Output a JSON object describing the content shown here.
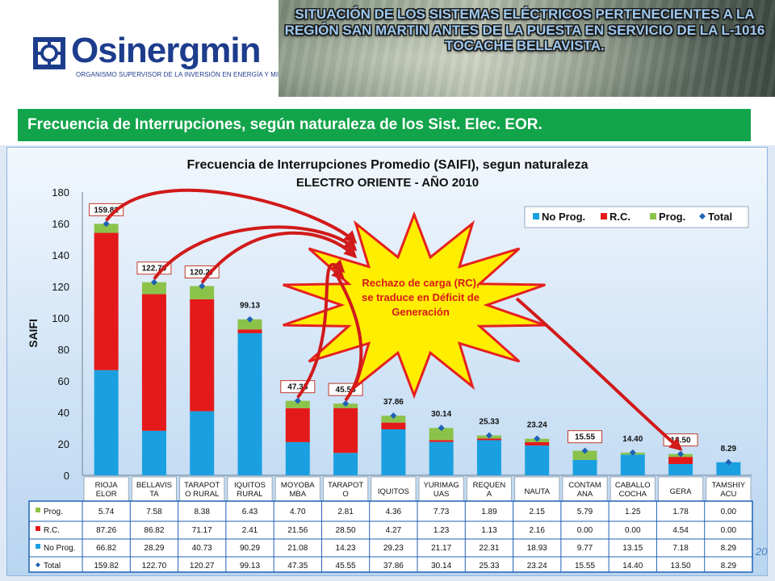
{
  "header": {
    "logo_name": "Osinergmin",
    "logo_subtitle": "ORGANISMO SUPERVISOR DE LA INVERSIÓN EN ENERGÍA Y MINERÍA",
    "title": "SITUACIÓN DE LOS SISTEMAS ELÉCTRICOS PERTENECIENTES A LA REGIÓN SAN MARTIN ANTES DE LA PUESTA EN SERVICIO DE LA L-1016 TOCACHE BELLAVISTA."
  },
  "section_title": "Frecuencia de Interrupciones, según naturaleza de los Sist. Elec. EOR.",
  "page_number": "20",
  "colors": {
    "no_prog": "#1aa0e0",
    "rc": "#e41a1a",
    "prog": "#8bc34a",
    "total": "#1f62b5",
    "green_bar": "#12a44a",
    "starburst": "#ffee00"
  },
  "callout": {
    "text_lines": [
      "Rechazo de carga (RC),",
      "se traduce en Déficit de",
      "Generación"
    ]
  },
  "chart_data": {
    "type": "bar",
    "stacked": true,
    "title": "Frecuencia de Interrupciones Promedio (SAIFI), segun naturaleza",
    "subtitle": "ELECTRO ORIENTE - AÑO 2010",
    "ylabel": "SAIFI",
    "xlabel": "",
    "ylim": [
      0,
      180
    ],
    "yticks": [
      "0",
      "20",
      "40",
      "60",
      "80",
      "100",
      "120",
      "140",
      "160",
      "180"
    ],
    "grid": false,
    "legend_position": "top-right",
    "categories": [
      [
        "RIOJA",
        "ELOR"
      ],
      [
        "BELLAVIS",
        "TA"
      ],
      [
        "TARAPOT",
        "O RURAL"
      ],
      [
        "IQUITOS",
        "RURAL"
      ],
      [
        "MOYOBA",
        "MBA"
      ],
      [
        "TARAPOT",
        "O"
      ],
      [
        "IQUITOS"
      ],
      [
        "YURIMAG",
        "UAS"
      ],
      [
        "REQUEN",
        "A"
      ],
      [
        "NAUTA"
      ],
      [
        "CONTAM",
        "ANA"
      ],
      [
        "CABALLO",
        "COCHA"
      ],
      [
        "GERA"
      ],
      [
        "TAMSHIY",
        "ACU"
      ]
    ],
    "series": [
      {
        "key": "no_prog",
        "name": "No Prog.",
        "table_label": "No Prog.",
        "values": [
          66.82,
          28.29,
          40.73,
          90.29,
          21.08,
          14.23,
          29.23,
          21.17,
          22.31,
          18.93,
          9.77,
          13.15,
          7.18,
          8.29
        ],
        "labels": [
          "66.82",
          "28.29",
          "40.73",
          "90.29",
          "21.08",
          "14.23",
          "29.23",
          "21.17",
          "22.31",
          "18.93",
          "9.77",
          "13.15",
          "7.18",
          "8.29"
        ]
      },
      {
        "key": "rc",
        "name": "R.C.",
        "table_label": "R.C.",
        "values": [
          87.26,
          86.82,
          71.17,
          2.41,
          21.56,
          28.5,
          4.27,
          1.23,
          1.13,
          2.16,
          0.0,
          0.0,
          4.54,
          0.0
        ],
        "labels": [
          "87.26",
          "86.82",
          "71.17",
          "2.41",
          "21.56",
          "28.50",
          "4.27",
          "1.23",
          "1.13",
          "2.16",
          "0.00",
          "0.00",
          "4.54",
          "0.00"
        ]
      },
      {
        "key": "prog",
        "name": "Prog.",
        "table_label": "Prog.",
        "values": [
          5.74,
          7.58,
          8.38,
          6.43,
          4.7,
          2.81,
          4.36,
          7.73,
          1.89,
          2.15,
          5.79,
          1.25,
          1.78,
          0.0
        ],
        "labels": [
          "5.74",
          "7.58",
          "8.38",
          "6.43",
          "4.70",
          "2.81",
          "4.36",
          "7.73",
          "1.89",
          "2.15",
          "5.79",
          "1.25",
          "1.78",
          "0.00"
        ]
      },
      {
        "key": "total",
        "name": "Total",
        "table_label": "Total",
        "values": [
          159.82,
          122.7,
          120.27,
          99.13,
          47.35,
          45.55,
          37.86,
          30.14,
          25.33,
          23.24,
          15.55,
          14.4,
          13.5,
          8.29
        ],
        "labels": [
          "159.82",
          "122.70",
          "120.27",
          "99.13",
          "47.35",
          "45.55",
          "37.86",
          "30.14",
          "25.33",
          "23.24",
          "15.55",
          "14.40",
          "13.50",
          "8.29"
        ]
      }
    ],
    "legend": [
      "No Prog.",
      "R.C.",
      "Prog.",
      "Total"
    ],
    "table_row_order": [
      "prog",
      "rc",
      "no_prog",
      "total"
    ],
    "boxed_labels": [
      0,
      1,
      2,
      4,
      5,
      10,
      12
    ],
    "arrow_targets": [
      0,
      1,
      2,
      4,
      5,
      12
    ]
  }
}
